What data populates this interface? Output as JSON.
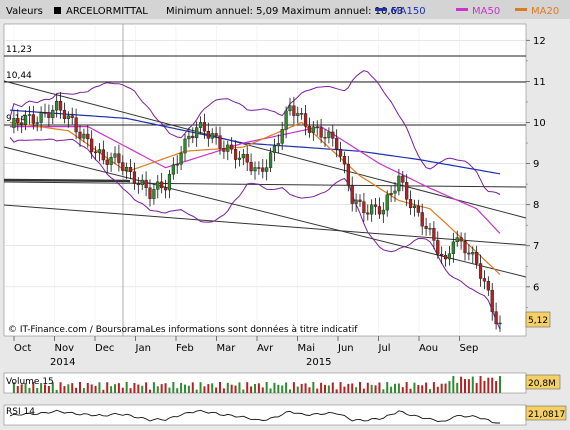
{
  "header": {
    "label": "Valeurs",
    "name": "ARCELORMITTAL",
    "range_text": "Minimum annuel: 5,09 Maximum annuel: 10,63",
    "legend": [
      {
        "label": "MA150",
        "color": "#1f2fb0"
      },
      {
        "label": "MA50",
        "color": "#cc33cc"
      },
      {
        "label": "MA20",
        "color": "#e07a1f"
      }
    ]
  },
  "footer_text": "© IT-Finance.com / BoursoramaLes informations sont données à titre indicatif",
  "chart_data": {
    "type": "candlestick",
    "title": "ARCELORMITTAL",
    "y_ticks": [
      6,
      7,
      8,
      9,
      10,
      11,
      12
    ],
    "ylim": [
      4.9,
      12.3
    ],
    "level_labels": [
      "11,23",
      "10,44",
      "9,14"
    ],
    "last_price": "5,12",
    "months": [
      "Oct",
      "Nov",
      "Dec",
      "Jan",
      "Feb",
      "Mar",
      "Avr",
      "Mai",
      "Jun",
      "Jul",
      "Aou",
      "Sep"
    ],
    "years": [
      "2014",
      "2015"
    ],
    "price_path": [
      {
        "t": 0,
        "v": 9.8
      },
      {
        "t": 4,
        "v": 10.1
      },
      {
        "t": 8,
        "v": 10.2
      },
      {
        "t": 12,
        "v": 10.3
      },
      {
        "t": 16,
        "v": 10.0
      },
      {
        "t": 20,
        "v": 9.6
      },
      {
        "t": 24,
        "v": 9.0
      },
      {
        "t": 28,
        "v": 9.1
      },
      {
        "t": 32,
        "v": 8.7
      },
      {
        "t": 36,
        "v": 8.2
      },
      {
        "t": 40,
        "v": 8.5
      },
      {
        "t": 44,
        "v": 9.4
      },
      {
        "t": 48,
        "v": 9.8
      },
      {
        "t": 52,
        "v": 9.7
      },
      {
        "t": 56,
        "v": 9.4
      },
      {
        "t": 60,
        "v": 9.0
      },
      {
        "t": 64,
        "v": 8.8
      },
      {
        "t": 68,
        "v": 9.4
      },
      {
        "t": 72,
        "v": 10.3
      },
      {
        "t": 76,
        "v": 10.0
      },
      {
        "t": 80,
        "v": 9.8
      },
      {
        "t": 84,
        "v": 9.4
      },
      {
        "t": 88,
        "v": 8.2
      },
      {
        "t": 92,
        "v": 7.9
      },
      {
        "t": 96,
        "v": 7.8
      },
      {
        "t": 100,
        "v": 8.7
      },
      {
        "t": 104,
        "v": 7.9
      },
      {
        "t": 108,
        "v": 7.2
      },
      {
        "t": 112,
        "v": 6.6
      },
      {
        "t": 114,
        "v": 7.3
      },
      {
        "t": 118,
        "v": 6.8
      },
      {
        "t": 122,
        "v": 6.1
      },
      {
        "t": 124,
        "v": 5.5
      },
      {
        "t": 126,
        "v": 5.12
      }
    ],
    "ma150": [
      {
        "t": 0,
        "v": 10.3
      },
      {
        "t": 30,
        "v": 10.1
      },
      {
        "t": 60,
        "v": 9.5
      },
      {
        "t": 75,
        "v": 9.4
      },
      {
        "t": 90,
        "v": 9.3
      },
      {
        "t": 105,
        "v": 9.1
      },
      {
        "t": 126,
        "v": 8.75
      }
    ],
    "ma50": [
      {
        "t": 0,
        "v": 9.9
      },
      {
        "t": 20,
        "v": 9.9
      },
      {
        "t": 40,
        "v": 8.9
      },
      {
        "t": 60,
        "v": 9.5
      },
      {
        "t": 80,
        "v": 9.9
      },
      {
        "t": 95,
        "v": 9.0
      },
      {
        "t": 108,
        "v": 8.4
      },
      {
        "t": 120,
        "v": 7.9
      },
      {
        "t": 126,
        "v": 7.3
      }
    ],
    "ma20": [
      {
        "t": 0,
        "v": 10.0
      },
      {
        "t": 15,
        "v": 9.8
      },
      {
        "t": 30,
        "v": 8.8
      },
      {
        "t": 45,
        "v": 9.3
      },
      {
        "t": 60,
        "v": 9.4
      },
      {
        "t": 75,
        "v": 10.0
      },
      {
        "t": 90,
        "v": 8.7
      },
      {
        "t": 100,
        "v": 8.1
      },
      {
        "t": 108,
        "v": 7.9
      },
      {
        "t": 116,
        "v": 7.2
      },
      {
        "t": 126,
        "v": 6.3
      }
    ],
    "volume": {
      "label": "Volume 15",
      "last": "20,8M"
    },
    "rsi": {
      "label": "RSI 14",
      "last": "21,0817"
    }
  }
}
